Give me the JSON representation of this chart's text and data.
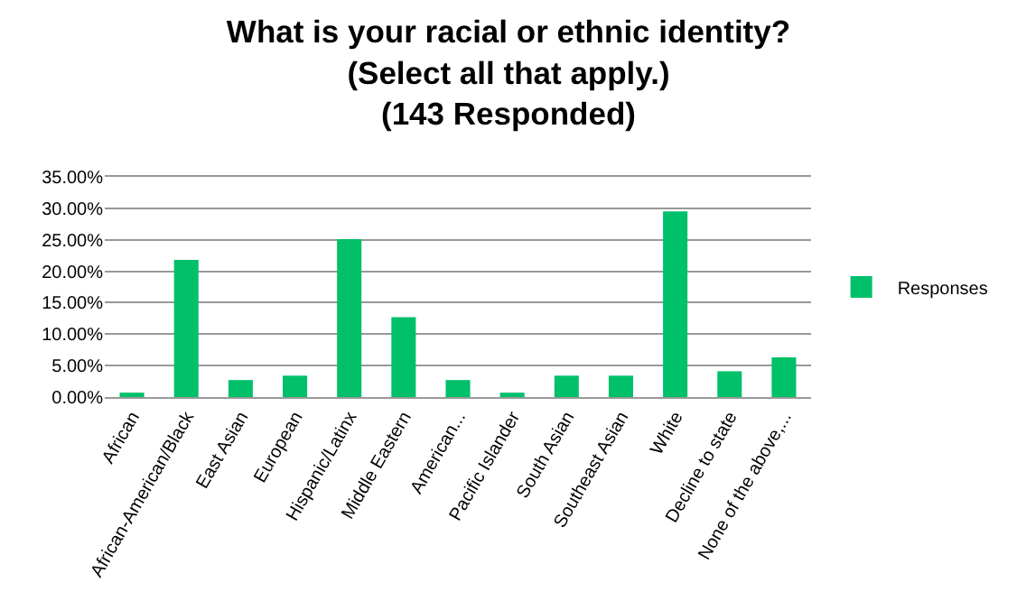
{
  "chart_data": {
    "type": "bar",
    "title": "What is your racial or ethnic identity?\n(Select all that apply.)\n(143 Responded)",
    "categories": [
      "African",
      "African-American/Black",
      "East Asian",
      "European",
      "Hispanic/Latinx",
      "Middle Eastern",
      "American...",
      "Pacific Islander",
      "South Asian",
      "Southeast Asian",
      "White",
      "Decline to state",
      "None of the above,..."
    ],
    "series": [
      {
        "name": "Responses",
        "color": "#00c06a",
        "values": [
          0.7,
          21.8,
          2.7,
          3.4,
          25.1,
          12.7,
          2.7,
          0.7,
          3.4,
          3.4,
          29.5,
          4.1,
          6.3
        ]
      }
    ],
    "ylim": [
      0,
      35
    ],
    "yticks": [
      {
        "value": 0,
        "label": "0.00%"
      },
      {
        "value": 5,
        "label": "5.00%"
      },
      {
        "value": 10,
        "label": "10.00%"
      },
      {
        "value": 15,
        "label": "15.00%"
      },
      {
        "value": 20,
        "label": "20.00%"
      },
      {
        "value": 25,
        "label": "25.00%"
      },
      {
        "value": 30,
        "label": "30.00%"
      },
      {
        "value": 35,
        "label": "35.00%"
      }
    ],
    "grid": "y",
    "legend": "right"
  }
}
